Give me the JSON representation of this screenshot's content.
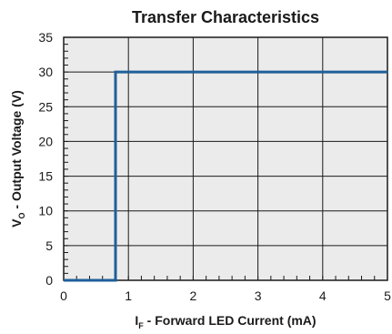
{
  "chart_data": {
    "type": "line",
    "title": "Transfer Characteristics",
    "xlabel": {
      "main": "I",
      "sub": "F",
      "rest": " - Forward LED Current (mA)"
    },
    "ylabel": {
      "main": "V",
      "sub": "O",
      "rest": " - Output Voltage (V)"
    },
    "xlim": [
      0,
      5
    ],
    "ylim": [
      0,
      35
    ],
    "xticks": [
      "0",
      "1",
      "2",
      "3",
      "4",
      "5"
    ],
    "yticks": [
      "0",
      "5",
      "10",
      "15",
      "20",
      "25",
      "30",
      "35"
    ],
    "grid": true,
    "series": [
      {
        "x": [
          0,
          0.8,
          0.8,
          5
        ],
        "y": [
          0,
          0,
          30,
          30
        ]
      }
    ],
    "colors": {
      "line": "#1f5f99",
      "plot_background": "#ebebeb",
      "grid": "#1a1a1a"
    }
  }
}
